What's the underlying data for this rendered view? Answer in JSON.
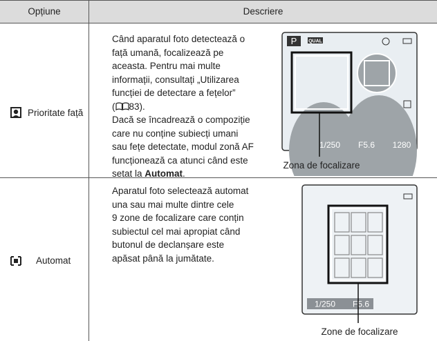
{
  "table": {
    "header": [
      "Opțiune",
      "Descriere"
    ],
    "rows": [
      {
        "option": "Prioritate față",
        "lines": [
          "Când aparatul foto detectează o",
          "față umană, focalizează pe",
          "aceasta. Pentru mai multe",
          "informații, consultați „Utilizarea",
          "funcției de detectare a fețelor”"
        ],
        "ref": {
          "open": "(",
          "page": "83)."
        },
        "lines2": [
          "Dacă se încadrează o compoziție",
          "care nu conține subiecți umani",
          "sau fețe detectate, modul zonă AF",
          "funcționează ca atunci când este"
        ],
        "last": [
          "setat la ",
          "Automat",
          "."
        ],
        "screen": {
          "mode": "P",
          "quality": "QUAL",
          "shutter": "1/250",
          "aperture": "F5.6",
          "shots": "1280",
          "caption": "Zona de focalizare"
        }
      },
      {
        "option": "Automat",
        "lines": [
          "Aparatul foto selectează automat",
          "una sau mai multe dintre cele",
          "9 zone de focalizare care conțin",
          "subiectul cel mai apropiat când",
          "butonul de declanșare este",
          "apăsat până la jumătate."
        ],
        "screen": {
          "shutter": "1/250",
          "aperture": "F5.6",
          "caption": "Zone de focalizare"
        }
      }
    ]
  }
}
